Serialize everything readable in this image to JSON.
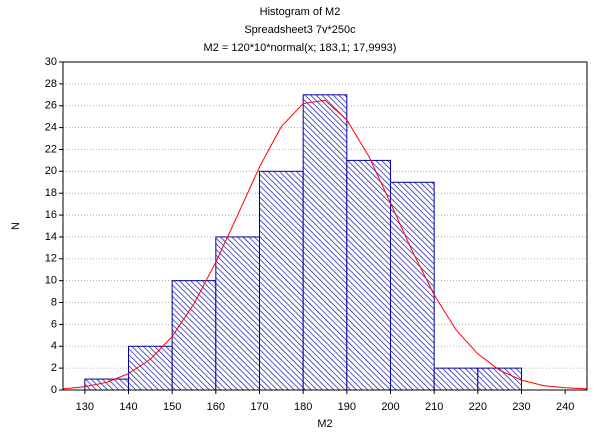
{
  "chart_data": {
    "type": "histogram",
    "title": "Histogram of M2",
    "subtitle": "Spreadsheet3 7v*250c",
    "annotation": "M2 = 120*10*normal(x; 183,1; 17,9993)",
    "x_label": "M2",
    "y_label": "N",
    "bins": [
      130,
      140,
      150,
      160,
      170,
      180,
      190,
      200,
      210,
      220,
      230
    ],
    "values": [
      1,
      4,
      10,
      14,
      20,
      27,
      21,
      19,
      2,
      2
    ],
    "color": "#0000a0",
    "curve": {
      "color": "#ff0000",
      "x": [
        125,
        130,
        135,
        140,
        145,
        150,
        155,
        160,
        165,
        170,
        175,
        180,
        185,
        190,
        195,
        200,
        205,
        210,
        215,
        220,
        225,
        230,
        235,
        240,
        245
      ],
      "values": [
        0.1,
        0.3,
        0.7,
        1.5,
        2.8,
        4.9,
        7.9,
        11.7,
        16.0,
        20.4,
        24.1,
        26.2,
        26.5,
        24.7,
        21.4,
        17.1,
        12.7,
        8.7,
        5.5,
        3.3,
        1.8,
        0.9,
        0.4,
        0.2,
        0.1
      ]
    },
    "xlim": [
      125,
      245
    ],
    "xticks": [
      130,
      140,
      150,
      160,
      170,
      180,
      190,
      200,
      210,
      220,
      230,
      240
    ],
    "ylim": [
      0,
      30
    ],
    "yticks": [
      0,
      2,
      4,
      6,
      8,
      10,
      12,
      14,
      16,
      18,
      20,
      22,
      24,
      26,
      28,
      30
    ],
    "grid": true
  }
}
